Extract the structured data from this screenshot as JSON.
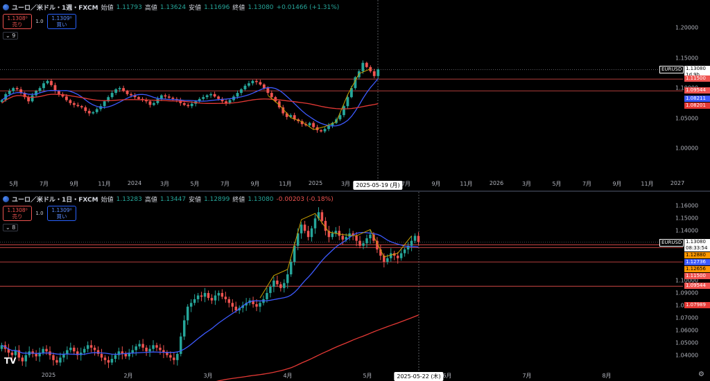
{
  "colors": {
    "bull": "#26a69a",
    "bear": "#ef5350",
    "ma_short": "#3d5afe",
    "ma_long": "#e53935",
    "zigzag": "#c8a000",
    "hline": "#ef5350"
  },
  "weekly": {
    "header": {
      "symbol": "ユーロ／米ドル・1週・FXCM",
      "open_label": "始値",
      "open": "1.11793",
      "high_label": "高値",
      "high": "1.13624",
      "low_label": "安値",
      "low": "1.11696",
      "close_label": "終値",
      "close": "1.13080",
      "change": "+0.01466 (+1.31%)"
    },
    "sell_price": "1.1308⁰",
    "sell_label": "売り",
    "spread": "1.0",
    "buy_price": "1.1309⁰",
    "buy_label": "買い",
    "collapse": "9",
    "ylim": [
      0.97,
      1.235
    ],
    "yticks": [
      "1.20000",
      "1.15000",
      "1.10000",
      "1.05000",
      "1.00000"
    ],
    "xticks": [
      "5月",
      "7月",
      "9月",
      "11月",
      "2024",
      "3月",
      "5月",
      "7月",
      "9月",
      "11月",
      "2025",
      "3月",
      "5月",
      "7月",
      "9月",
      "11月",
      "2026",
      "3月",
      "5月",
      "7月",
      "9月",
      "11月",
      "2027"
    ],
    "cursor_date": "2025-05-19 (月)",
    "symbol_tag": "EURUSD",
    "price_labels": [
      {
        "text": "1.13080\n1d 9h",
        "bg": "#ffffff",
        "fg": "#000000",
        "value": 1.1308
      },
      {
        "text": "1.11500",
        "bg": "#ef5350",
        "fg": "#ffffff",
        "value": 1.115
      },
      {
        "text": "1.09544",
        "bg": "#ef5350",
        "fg": "#ffffff",
        "value": 1.09544
      },
      {
        "text": "1.08211",
        "bg": "#3d5afe",
        "fg": "#ffffff",
        "value": 1.08211
      },
      {
        "text": "1.08201",
        "bg": "#e53935",
        "fg": "#ffffff",
        "value": 1.08201
      }
    ],
    "hlines": [
      1.115,
      1.09544
    ],
    "close": [
      1.08,
      1.09,
      1.095,
      1.1,
      1.098,
      1.092,
      1.085,
      1.078,
      1.088,
      1.095,
      1.1,
      1.108,
      1.112,
      1.105,
      1.095,
      1.09,
      1.086,
      1.08,
      1.075,
      1.072,
      1.07,
      1.068,
      1.062,
      1.058,
      1.06,
      1.065,
      1.07,
      1.078,
      1.085,
      1.092,
      1.098,
      1.1,
      1.095,
      1.09,
      1.088,
      1.085,
      1.082,
      1.08,
      1.078,
      1.072,
      1.075,
      1.082,
      1.088,
      1.086,
      1.084,
      1.082,
      1.08,
      1.075,
      1.072,
      1.07,
      1.074,
      1.078,
      1.082,
      1.085,
      1.088,
      1.09,
      1.086,
      1.082,
      1.078,
      1.075,
      1.08,
      1.086,
      1.092,
      1.098,
      1.104,
      1.108,
      1.112,
      1.11,
      1.106,
      1.1,
      1.092,
      1.085,
      1.078,
      1.068,
      1.058,
      1.052,
      1.055,
      1.048,
      1.045,
      1.04,
      1.038,
      1.042,
      1.035,
      1.03,
      1.028,
      1.032,
      1.038,
      1.042,
      1.048,
      1.055,
      1.07,
      1.085,
      1.1,
      1.118,
      1.128,
      1.142,
      1.135,
      1.128,
      1.12,
      1.131
    ]
  },
  "daily": {
    "header": {
      "symbol": "ユーロ／米ドル・1日・FXCM",
      "open_label": "始値",
      "open": "1.13283",
      "high_label": "高値",
      "high": "1.13447",
      "low_label": "安値",
      "low": "1.12899",
      "close_label": "終値",
      "close": "1.13080",
      "change": "-0.00203 (-0.18%)"
    },
    "sell_price": "1.1308⁰",
    "sell_label": "売り",
    "spread": "1.0",
    "buy_price": "1.1309⁰",
    "buy_label": "買い",
    "collapse": "8",
    "ylim": [
      1.032,
      1.168
    ],
    "yticks": [
      "1.16000",
      "1.15000",
      "1.14000",
      "1.10000",
      "1.09000",
      "1.08000",
      "1.07000",
      "1.06000",
      "1.05000",
      "1.04000"
    ],
    "xticks": [
      "2025",
      "2月",
      "3月",
      "4月",
      "5月",
      "6月",
      "7月",
      "8月"
    ],
    "cursor_date": "2025-05-22 (木)",
    "symbol_tag": "EURUSD",
    "price_labels": [
      {
        "text": "1.13080\n08:33:54",
        "bg": "#ffffff",
        "fg": "#000000",
        "value": 1.1308
      },
      {
        "text": "1.12880",
        "bg": "#ff9800",
        "fg": "#000000",
        "value": 1.1288
      },
      {
        "text": "1.12736",
        "bg": "#3d5afe",
        "fg": "#ffffff",
        "value": 1.12736
      },
      {
        "text": "1.12656",
        "bg": "#ff9800",
        "fg": "#000000",
        "value": 1.12656
      },
      {
        "text": "1.11500",
        "bg": "#ef5350",
        "fg": "#ffffff",
        "value": 1.115
      },
      {
        "text": "1.09544",
        "bg": "#ef5350",
        "fg": "#ffffff",
        "value": 1.09544
      },
      {
        "text": "1.07989",
        "bg": "#e53935",
        "fg": "#ffffff",
        "value": 1.07989
      }
    ],
    "hlines": [
      1.115,
      1.09544,
      1.1288,
      1.12656
    ],
    "close": [
      1.048,
      1.045,
      1.042,
      1.04,
      1.044,
      1.038,
      1.035,
      1.04,
      1.043,
      1.041,
      1.039,
      1.042,
      1.045,
      1.043,
      1.04,
      1.036,
      1.034,
      1.038,
      1.041,
      1.044,
      1.046,
      1.043,
      1.04,
      1.042,
      1.045,
      1.048,
      1.046,
      1.044,
      1.041,
      1.038,
      1.036,
      1.034,
      1.037,
      1.04,
      1.043,
      1.041,
      1.039,
      1.042,
      1.044,
      1.047,
      1.049,
      1.046,
      1.043,
      1.045,
      1.048,
      1.046,
      1.044,
      1.042,
      1.04,
      1.038,
      1.036,
      1.041,
      1.055,
      1.068,
      1.079,
      1.082,
      1.085,
      1.088,
      1.087,
      1.09,
      1.086,
      1.084,
      1.088,
      1.09,
      1.087,
      1.085,
      1.082,
      1.079,
      1.076,
      1.078,
      1.08,
      1.082,
      1.084,
      1.081,
      1.079,
      1.082,
      1.085,
      1.09,
      1.095,
      1.1,
      1.097,
      1.094,
      1.098,
      1.105,
      1.115,
      1.128,
      1.138,
      1.145,
      1.14,
      1.135,
      1.142,
      1.15,
      1.155,
      1.148,
      1.14,
      1.135,
      1.138,
      1.14,
      1.136,
      1.133,
      1.135,
      1.138,
      1.136,
      1.132,
      1.128,
      1.13,
      1.134,
      1.137,
      1.132,
      1.125,
      1.12,
      1.115,
      1.118,
      1.122,
      1.12,
      1.118,
      1.122,
      1.125,
      1.128,
      1.132,
      1.136,
      1.131
    ]
  },
  "footer": {
    "tv_logo": "TV",
    "settings_icon": "⚙"
  }
}
